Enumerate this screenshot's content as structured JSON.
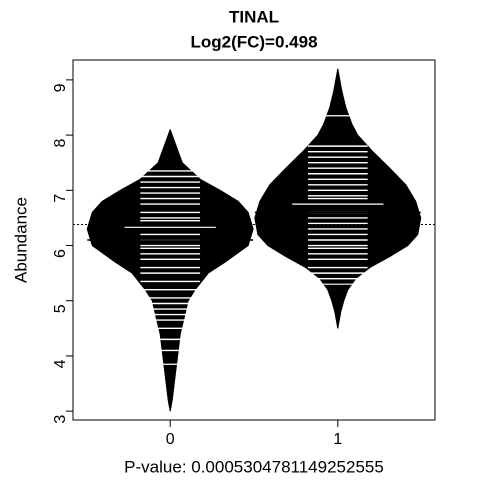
{
  "chart_data": {
    "type": "beanplot",
    "title": "TINAL",
    "subtitle": "Log2(FC)=0.498",
    "ylabel": "Abundance",
    "xlabel": "P-value: 0.0005304781149252555",
    "categories": [
      "0",
      "1"
    ],
    "xlim": [
      -0.58,
      1.58
    ],
    "ylim": [
      2.84,
      9.36
    ],
    "yticks": [
      3,
      4,
      5,
      6,
      7,
      8,
      9
    ],
    "overall_mean": 6.38,
    "color": "#000000",
    "line_color": "#ffffff",
    "series": [
      {
        "mean": 6.1,
        "density_y": [
          8.1,
          7.8,
          7.5,
          7.2,
          7.0,
          6.8,
          6.6,
          6.3,
          6.0,
          5.7,
          5.5,
          5.2,
          5.0,
          4.7,
          4.4,
          4.1,
          3.8,
          3.5,
          3.2,
          3.0
        ],
        "density": [
          0,
          0.036,
          0.072,
          0.179,
          0.298,
          0.406,
          0.465,
          0.495,
          0.465,
          0.328,
          0.227,
          0.149,
          0.107,
          0.084,
          0.06,
          0.048,
          0.036,
          0.024,
          0.012,
          0
        ],
        "observations": [
          7.35,
          7.25,
          7.15,
          7.05,
          6.95,
          6.85,
          6.75,
          6.6,
          6.5,
          6.45,
          6.2,
          6.1,
          6.0,
          5.95,
          5.85,
          5.75,
          5.6,
          5.5,
          5.35,
          5.2,
          5.05,
          4.95,
          4.85,
          4.75,
          4.65,
          4.5,
          4.3,
          4.1
        ],
        "long_lines": [
          6.33,
          3.85
        ]
      },
      {
        "mean": 6.6,
        "density_y": [
          9.2,
          8.8,
          8.5,
          8.2,
          8.0,
          7.7,
          7.4,
          7.1,
          6.8,
          6.5,
          6.2,
          6.0,
          5.8,
          5.6,
          5.4,
          5.2,
          5.0,
          4.8,
          4.5
        ],
        "density": [
          0,
          0.024,
          0.048,
          0.084,
          0.119,
          0.209,
          0.31,
          0.406,
          0.465,
          0.495,
          0.477,
          0.418,
          0.31,
          0.191,
          0.107,
          0.06,
          0.036,
          0.018,
          0
        ],
        "observations": [
          7.8,
          7.7,
          7.6,
          7.5,
          7.4,
          7.3,
          7.2,
          7.1,
          7.0,
          6.9,
          6.85,
          6.6,
          6.5,
          6.4,
          6.3,
          6.2,
          6.1,
          6.0,
          5.95,
          5.85,
          5.75,
          5.6,
          5.5,
          5.4
        ],
        "long_lines": [
          8.35,
          6.75,
          5.3
        ]
      }
    ]
  }
}
